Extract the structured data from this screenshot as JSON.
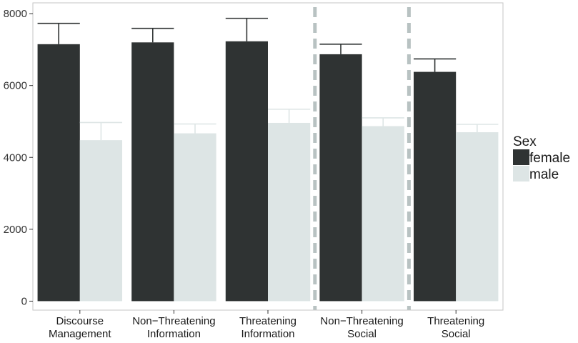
{
  "chart_data": {
    "type": "bar",
    "categories": [
      [
        "Discourse",
        "Management"
      ],
      [
        "Non−Threatening",
        "Information"
      ],
      [
        "Threatening",
        "Information"
      ],
      [
        "Non−Threatening",
        "Social"
      ],
      [
        "Threatening",
        "Social"
      ]
    ],
    "series": [
      {
        "name": "female",
        "values": [
          7150,
          7200,
          7230,
          6870,
          6380
        ],
        "error_upper": [
          7730,
          7590,
          7870,
          7150,
          6740
        ]
      },
      {
        "name": "male",
        "values": [
          4480,
          4670,
          4960,
          4870,
          4700
        ],
        "error_upper": [
          4970,
          4930,
          5340,
          5100,
          4920
        ]
      }
    ],
    "yticks": [
      0,
      2000,
      4000,
      6000,
      8000
    ],
    "ylim": [
      -250,
      8300
    ],
    "legend": {
      "title": "Sex",
      "placement": "right"
    },
    "colors": {
      "female": "#2f3333",
      "male": "#dde5e5",
      "divider": "#b8c2c2",
      "frame": "#c4c4c4"
    },
    "dividers_after_category": [
      3,
      4
    ],
    "grid": false
  }
}
